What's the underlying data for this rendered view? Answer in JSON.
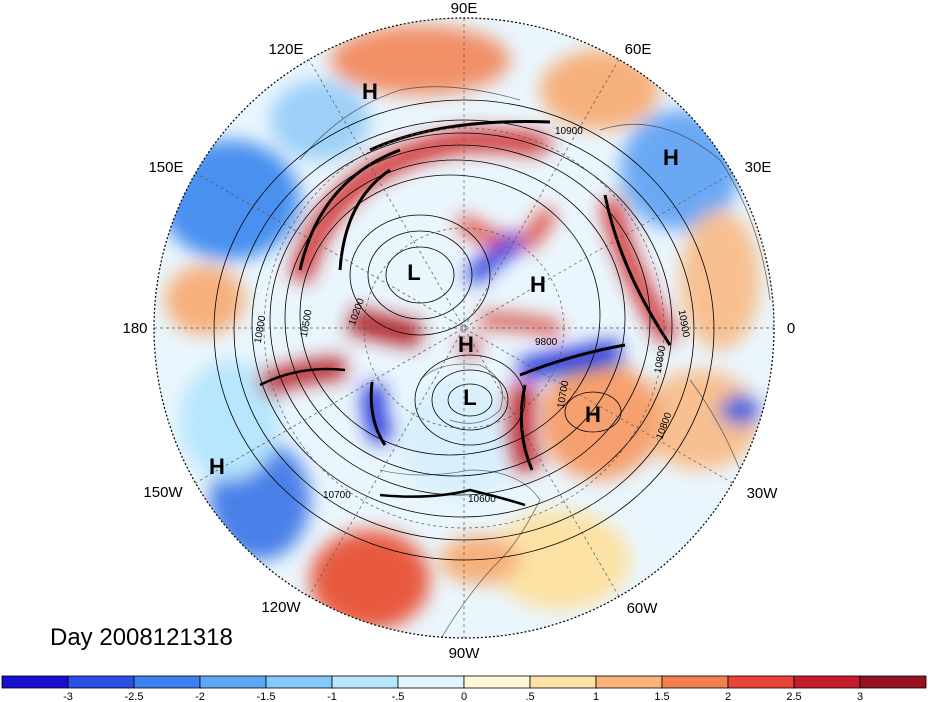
{
  "title": "Day 2008121318",
  "longitude_labels": [
    "90E",
    "60E",
    "30E",
    "0",
    "30W",
    "60W",
    "90W",
    "120W",
    "150W",
    "180",
    "150E",
    "120E"
  ],
  "pressure_centers": [
    {
      "label": "H"
    },
    {
      "label": "H"
    },
    {
      "label": "L"
    },
    {
      "label": "H"
    },
    {
      "label": "H"
    },
    {
      "label": "L"
    },
    {
      "label": "H"
    },
    {
      "label": "H"
    }
  ],
  "contour_labels": [
    "10900",
    "10800",
    "10500",
    "10200",
    "10700",
    "10600",
    "9800",
    "10700",
    "10800",
    "10900",
    "10800"
  ],
  "colorbar": {
    "ticks": [
      "-3",
      "-2.5",
      "-2",
      "-1.5",
      "-1",
      "-.5",
      "0",
      ".5",
      "1",
      "1.5",
      "2",
      "2.5",
      "3"
    ],
    "colors": [
      "#1a0fd0",
      "#2a50e6",
      "#3d80f0",
      "#5aa8f6",
      "#86c8fa",
      "#b8e6fc",
      "#e2f5fd",
      "#fff8d8",
      "#fce2a4",
      "#f9b27a",
      "#f3804f",
      "#e8443a",
      "#c41c2a",
      "#96101f"
    ]
  },
  "field_colors": {
    "neg_strong": "#1a2ad8",
    "neg": "#4a90f0",
    "neg_light": "#b8e6fc",
    "pos_light": "#fce2a4",
    "pos": "#f38050",
    "pos_strong": "#c41c2a"
  }
}
